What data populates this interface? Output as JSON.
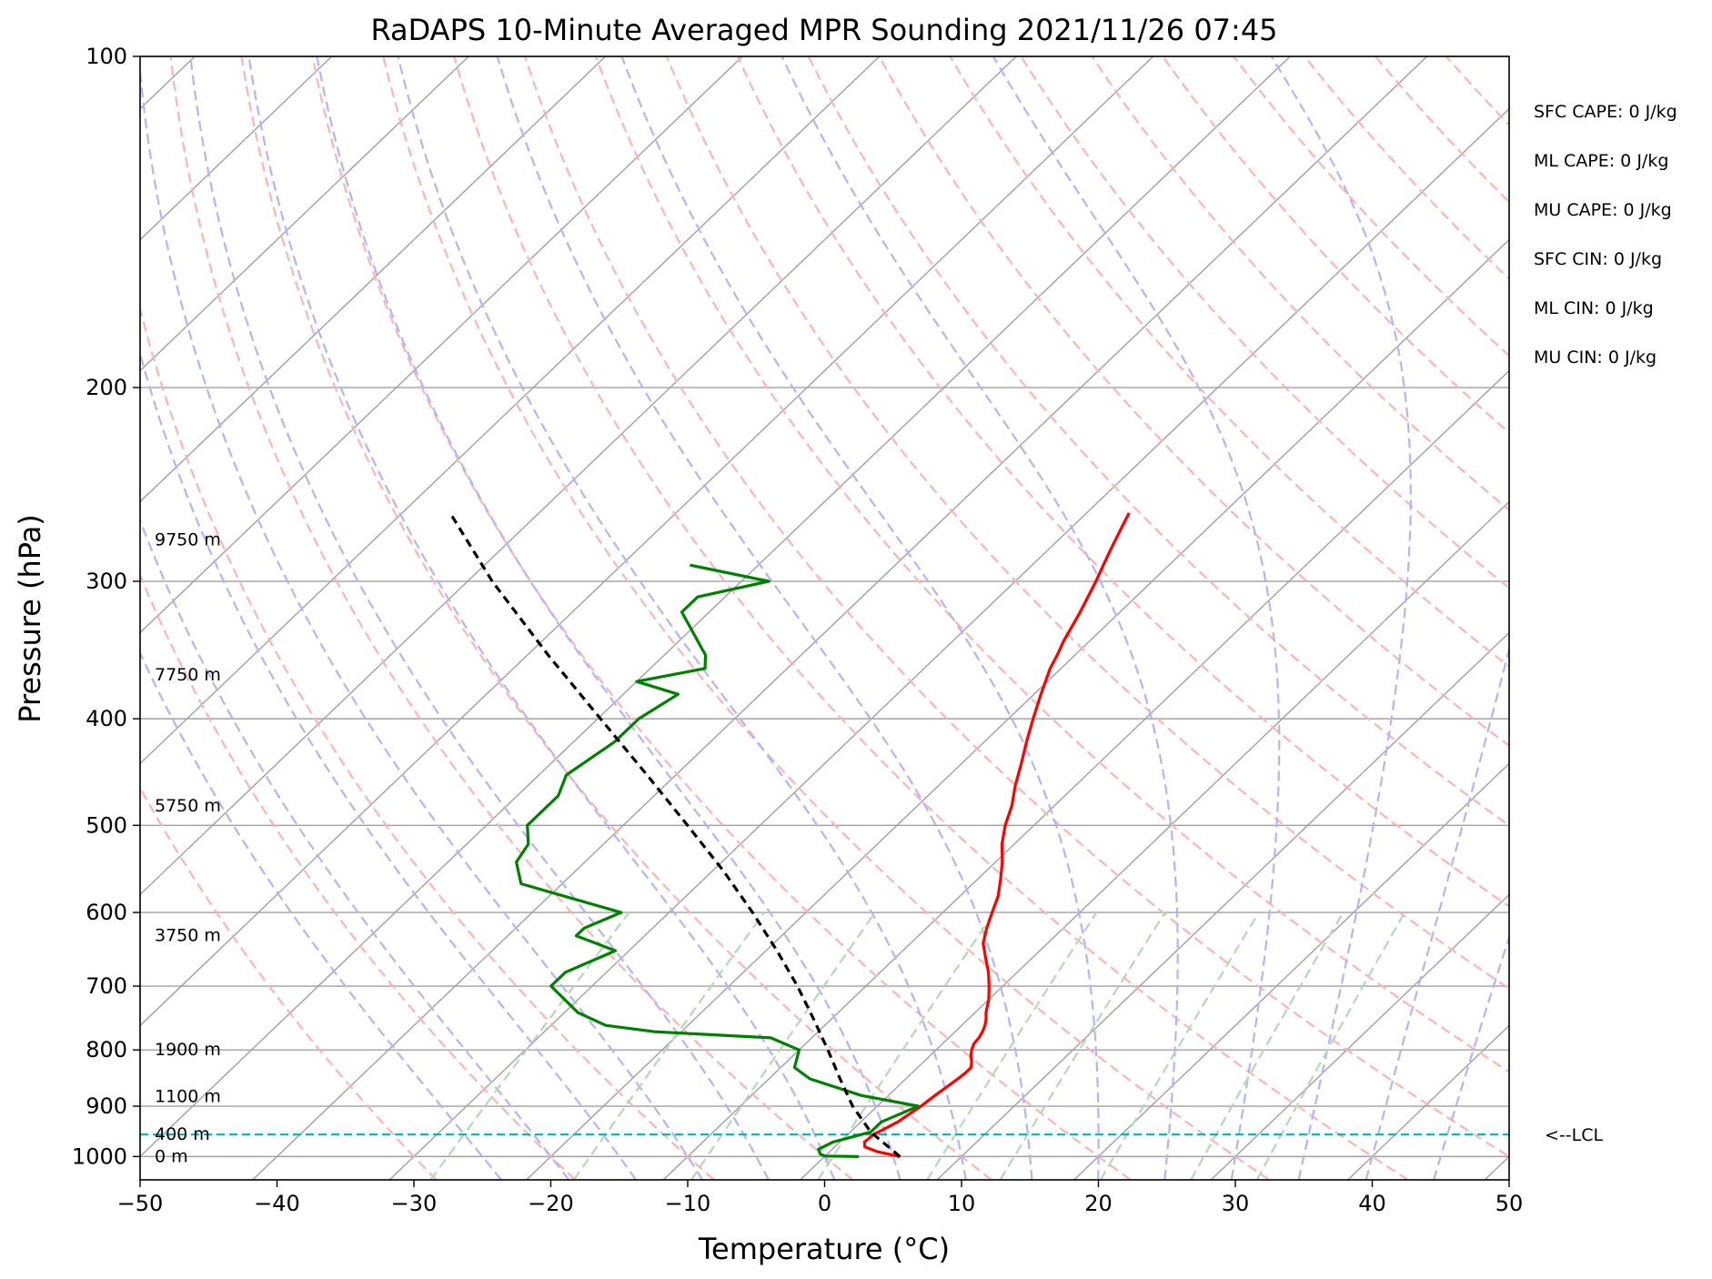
{
  "chart_data": {
    "type": "line",
    "title": "RaDAPS 10-Minute Averaged MPR Sounding 2021/11/26 07:45",
    "xlabel": "Temperature (°C)",
    "ylabel": "Pressure (hPa)",
    "xlim": [
      -50,
      50
    ],
    "ylim_pressure": [
      1050,
      100
    ],
    "y_scale": "log",
    "x_ticks": [
      "−50",
      "−40",
      "−30",
      "−20",
      "−10",
      "0",
      "10",
      "20",
      "30",
      "40",
      "50"
    ],
    "x_tick_values": [
      -50,
      -40,
      -30,
      -20,
      -10,
      0,
      10,
      20,
      30,
      40,
      50
    ],
    "y_ticks": [
      "100",
      "200",
      "300",
      "400",
      "500",
      "600",
      "700",
      "800",
      "900",
      "1000"
    ],
    "y_tick_values": [
      100,
      200,
      300,
      400,
      500,
      600,
      700,
      800,
      900,
      1000
    ],
    "grid": true,
    "skew_per_log10": 84,
    "series": [
      {
        "key": "temperature",
        "color": "#ff0000",
        "pressure": [
          1000,
          990,
          980,
          970,
          955,
          930,
          900,
          880,
          865,
          850,
          840,
          830,
          820,
          810,
          800,
          790,
          780,
          770,
          760,
          750,
          740,
          720,
          700,
          680,
          660,
          640,
          620,
          600,
          580,
          560,
          540,
          520,
          500,
          480,
          460,
          440,
          420,
          400,
          380,
          360,
          350,
          340,
          320,
          300,
          290,
          280,
          270,
          260
        ],
        "values": [
          5.5,
          3.5,
          2.2,
          1.8,
          1.9,
          2.7,
          3.2,
          3.4,
          3.6,
          3.8,
          3.9,
          3.9,
          3.5,
          3.0,
          2.6,
          2.3,
          2.2,
          2.0,
          1.7,
          1.3,
          0.8,
          0.0,
          -1.0,
          -2.1,
          -3.4,
          -4.7,
          -5.6,
          -6.4,
          -7.2,
          -8.3,
          -9.5,
          -10.9,
          -12.1,
          -13.1,
          -14.4,
          -15.6,
          -16.9,
          -18.2,
          -19.5,
          -20.8,
          -21.3,
          -21.9,
          -22.9,
          -24.1,
          -24.8,
          -25.5,
          -26.2,
          -26.9
        ]
      },
      {
        "key": "dewpoint",
        "color": "#008000",
        "pressure": [
          1000,
          999,
          995,
          985,
          970,
          950,
          930,
          910,
          900,
          880,
          850,
          830,
          800,
          780,
          770,
          760,
          740,
          700,
          680,
          650,
          630,
          620,
          600,
          565,
          540,
          520,
          500,
          470,
          450,
          420,
          400,
          380,
          370,
          360,
          350,
          320,
          310,
          300,
          290
        ],
        "values": [
          2.5,
          0.0,
          -0.5,
          -1.0,
          -0.5,
          1.5,
          1.5,
          2.5,
          3.0,
          -2.0,
          -7.0,
          -9.0,
          -10.0,
          -13.0,
          -22.0,
          -26.0,
          -29.0,
          -33.0,
          -33.0,
          -31.0,
          -35.0,
          -35.0,
          -33.5,
          -43.0,
          -45.0,
          -45.5,
          -47.0,
          -47.0,
          -48.0,
          -47.0,
          -47.0,
          -46.0,
          -50.0,
          -46.0,
          -47.0,
          -52.0,
          -52.0,
          -48.0,
          -55.0
        ]
      },
      {
        "key": "parcel",
        "color": "#000000",
        "dashed": true,
        "pressure": [
          1000,
          950,
          900,
          850,
          800,
          750,
          700,
          650,
          600,
          550,
          500,
          450,
          400,
          350,
          300,
          260
        ],
        "values": [
          5.5,
          1.5,
          -1.8,
          -4.8,
          -7.9,
          -11.3,
          -15.0,
          -19.2,
          -23.9,
          -29.2,
          -35.3,
          -42.1,
          -49.8,
          -58.5,
          -68.2,
          -76.5
        ]
      }
    ],
    "lcl_pressure": 955,
    "lcl_label": "<--LCL",
    "height_labels": [
      {
        "text": "0 m",
        "pressure": 1000
      },
      {
        "text": "400 m",
        "pressure": 955
      },
      {
        "text": "1100 m",
        "pressure": 882
      },
      {
        "text": "1900 m",
        "pressure": 800
      },
      {
        "text": "3750 m",
        "pressure": 630
      },
      {
        "text": "5750 m",
        "pressure": 480
      },
      {
        "text": "7750 m",
        "pressure": 365
      },
      {
        "text": "9750 m",
        "pressure": 275
      }
    ],
    "indices": [
      "SFC CAPE: 0 J/kg",
      "ML CAPE: 0 J/kg",
      "MU CAPE: 0 J/kg",
      "SFC CIN: 0 J/kg",
      "ML CIN: 0 J/kg",
      "MU CIN: 0 J/kg"
    ],
    "colors": {
      "isotherm": "#a0a0a0",
      "isobar": "#a0a0a0",
      "dry_adiabat": "#ffb3b3",
      "moist_adiabat": "#b3b3ff",
      "mixing_ratio": "#b3dab3",
      "lcl": "#00b3b3"
    }
  }
}
